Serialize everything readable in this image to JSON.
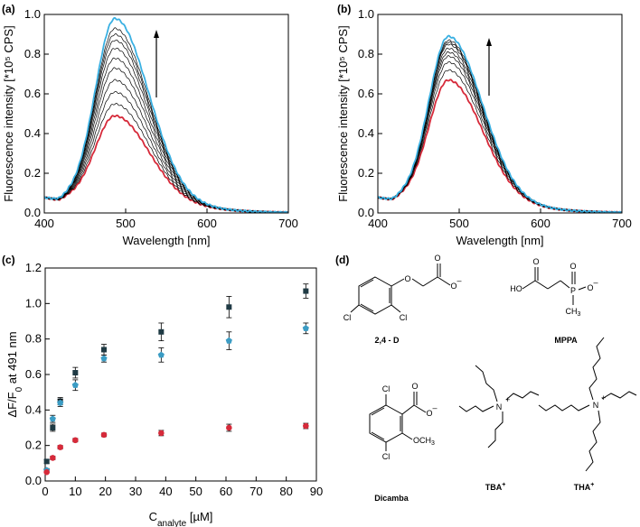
{
  "panel_labels": [
    "(a)",
    "(b)",
    "(c)",
    "(d)"
  ],
  "chart_data": [
    {
      "panel": "(a)",
      "type": "line",
      "xlabel": "Wavelength [nm]",
      "ylabel": "Fluorescence intensity [*10⁵ CPS]",
      "xlim": [
        400,
        700
      ],
      "ylim": [
        0,
        1.0
      ],
      "xticks": [
        400,
        500,
        600,
        700
      ],
      "yticks": [
        0.0,
        0.2,
        0.4,
        0.6,
        0.8,
        1.0
      ],
      "peak_wavelength": 487,
      "arrow": "up",
      "series_peaks": [
        0.49,
        0.55,
        0.61,
        0.67,
        0.73,
        0.78,
        0.83,
        0.87,
        0.9,
        0.93,
        0.98
      ],
      "series_colors": [
        "#d62a3a",
        "#000000",
        "#000000",
        "#000000",
        "#000000",
        "#000000",
        "#000000",
        "#000000",
        "#000000",
        "#000000",
        "#3ab0e2"
      ]
    },
    {
      "panel": "(b)",
      "type": "line",
      "xlabel": "Wavelength [nm]",
      "ylabel": "Fluorescence intensity [*10⁵ CPS]",
      "xlim": [
        400,
        700
      ],
      "ylim": [
        0,
        1.0
      ],
      "xticks": [
        400,
        500,
        600,
        700
      ],
      "yticks": [
        0.0,
        0.2,
        0.4,
        0.6,
        0.8,
        1.0
      ],
      "peak_wavelength": 487,
      "arrow": "up",
      "series_peaks": [
        0.67,
        0.72,
        0.76,
        0.79,
        0.81,
        0.83,
        0.85,
        0.86,
        0.87,
        0.89
      ],
      "series_colors": [
        "#d62a3a",
        "#000000",
        "#000000",
        "#000000",
        "#000000",
        "#000000",
        "#000000",
        "#000000",
        "#000000",
        "#3ab0e2"
      ]
    },
    {
      "panel": "(c)",
      "type": "scatter",
      "xlabel": "C",
      "xlabel_sub": "analyte",
      "xlabel_unit": " [µM]",
      "ylabel": "ΔF/F",
      "ylabel_sub": "0",
      "ylabel_rest": " at 491 nm",
      "xlim": [
        0,
        90
      ],
      "ylim": [
        0,
        1.2
      ],
      "xticks": [
        0,
        10,
        20,
        30,
        40,
        50,
        60,
        70,
        80,
        90
      ],
      "yticks": [
        0.0,
        0.2,
        0.4,
        0.6,
        0.8,
        1.0,
        1.2
      ],
      "series": [
        {
          "color": "#1f3a44",
          "marker": "square",
          "x": [
            0.5,
            2.5,
            5,
            10,
            19.5,
            38.5,
            61,
            86.5
          ],
          "y": [
            0.11,
            0.3,
            0.45,
            0.61,
            0.74,
            0.84,
            0.98,
            1.07
          ],
          "err": [
            0.01,
            0.02,
            0.02,
            0.03,
            0.03,
            0.05,
            0.06,
            0.04
          ]
        },
        {
          "color": "#3b9cc4",
          "marker": "pentagon",
          "x": [
            0.5,
            2.5,
            5,
            10,
            19.5,
            38.5,
            61,
            86.5
          ],
          "y": [
            0.06,
            0.35,
            0.44,
            0.54,
            0.69,
            0.71,
            0.79,
            0.86
          ],
          "err": [
            0.01,
            0.02,
            0.02,
            0.03,
            0.02,
            0.04,
            0.05,
            0.03
          ]
        },
        {
          "color": "#d62a3a",
          "marker": "circle",
          "x": [
            0.5,
            2.5,
            5,
            10,
            19.5,
            38.5,
            61,
            86.5
          ],
          "y": [
            0.05,
            0.13,
            0.19,
            0.23,
            0.26,
            0.27,
            0.3,
            0.31
          ],
          "err": [
            0.005,
            0.01,
            0.01,
            0.01,
            0.01,
            0.015,
            0.02,
            0.015
          ]
        }
      ]
    }
  ],
  "structures": {
    "labels": {
      "d24": "2,4 - D",
      "mppa": "MPPA",
      "dicamba": "Dicamba",
      "tba": "TBA",
      "tha": "THA",
      "plus": "+"
    },
    "atoms": {
      "O": "O",
      "Ominus": "O",
      "minus": "–",
      "Cl": "Cl",
      "HO": "HO",
      "P": "P",
      "CH3": "CH",
      "three": "3",
      "OCH3": "OCH",
      "N": "N"
    }
  }
}
